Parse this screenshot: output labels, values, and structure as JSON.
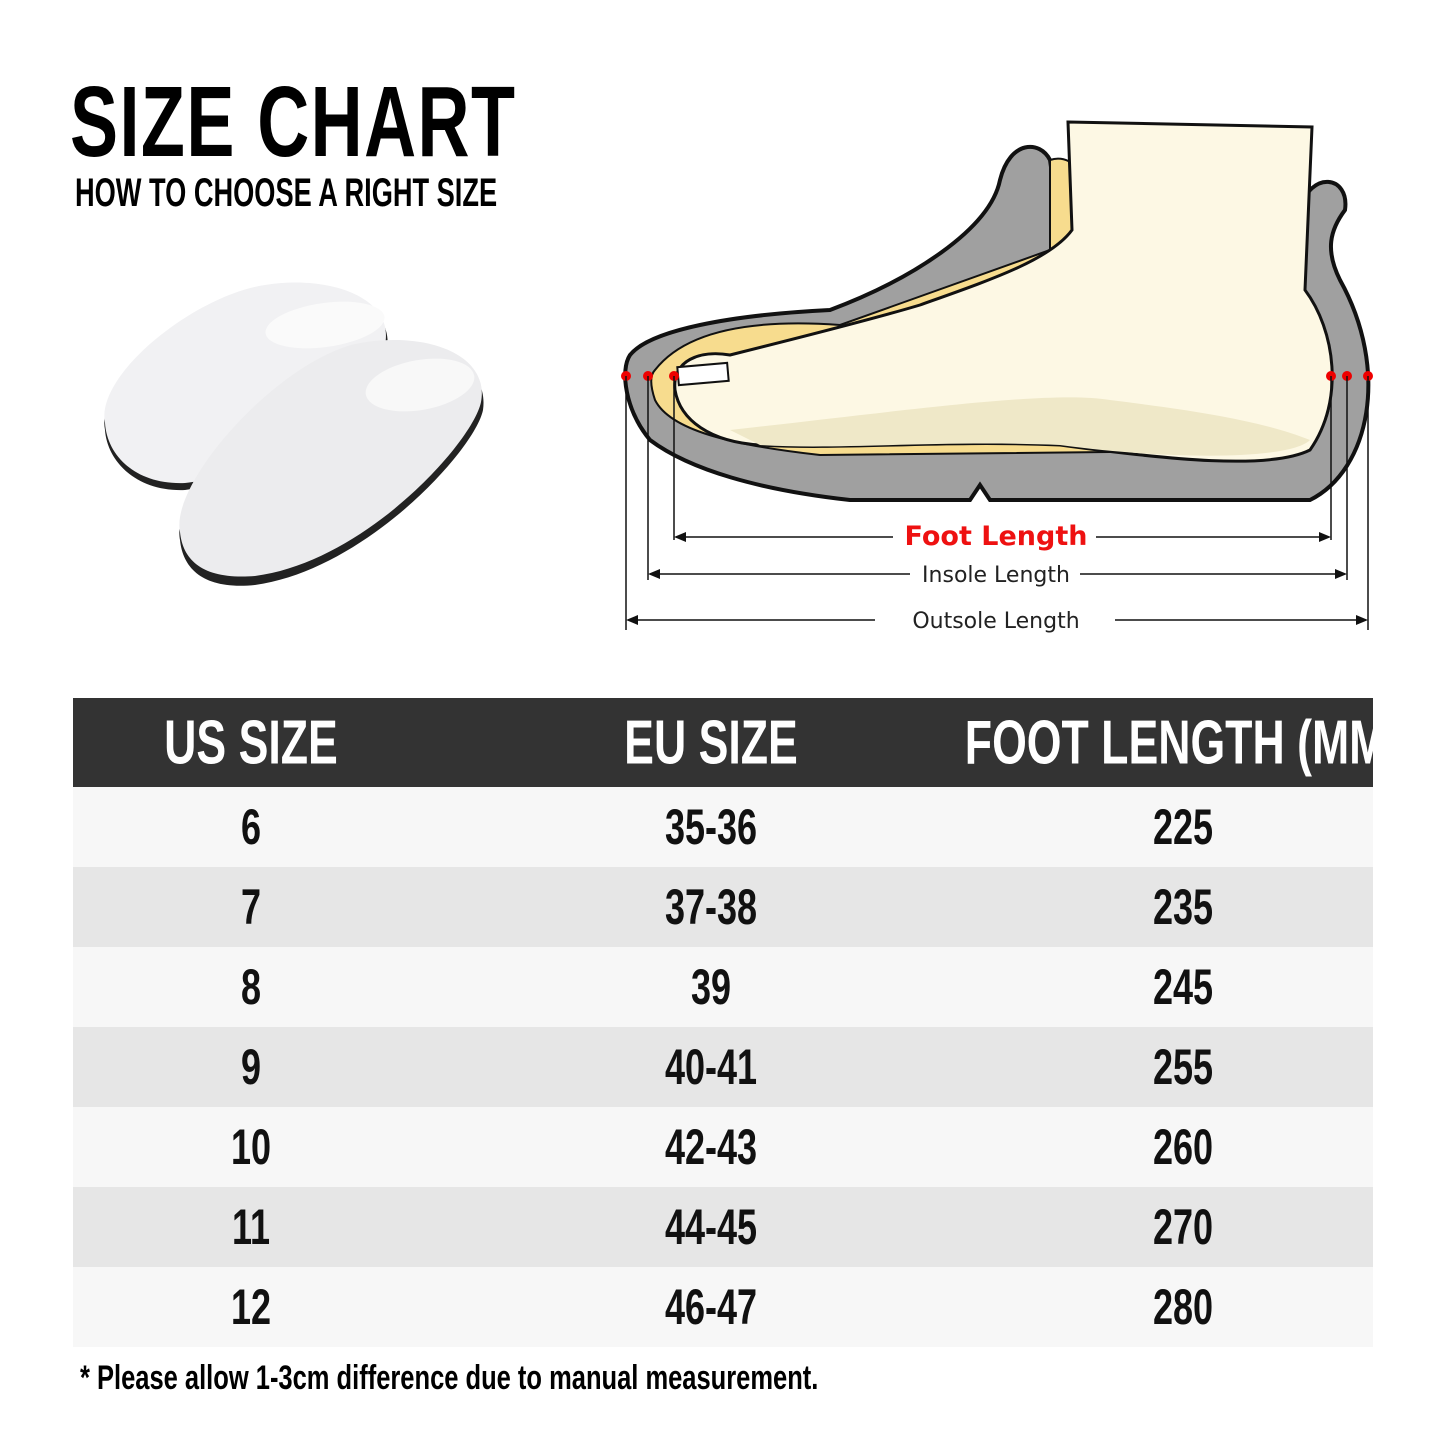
{
  "header": {
    "title": "SIZE CHART",
    "subtitle": "HOW TO CHOOSE A RIGHT SIZE"
  },
  "diagram": {
    "labels": {
      "foot_length": "Foot Length",
      "insole_length": "Insole Length",
      "outsole_length": "Outsole Length"
    },
    "colors": {
      "foot_length": "#ff0000",
      "outsole": "#a0a0a0",
      "insole": "#f7dc8e",
      "foot": "#fdf8e4"
    }
  },
  "table": {
    "columns": [
      "US SIZE",
      "EU SIZE",
      "FOOT LENGTH (MM)"
    ],
    "rows": [
      [
        "6",
        "35-36",
        "225"
      ],
      [
        "7",
        "37-38",
        "235"
      ],
      [
        "8",
        "39",
        "245"
      ],
      [
        "9",
        "40-41",
        "255"
      ],
      [
        "10",
        "42-43",
        "260"
      ],
      [
        "11",
        "44-45",
        "270"
      ],
      [
        "12",
        "46-47",
        "280"
      ]
    ],
    "colors": {
      "header_bg": "#333333",
      "row_light": "#f7f7f7",
      "row_dark": "#e6e6e6"
    }
  },
  "footnote": "* Please allow 1-3cm difference due to manual measurement."
}
